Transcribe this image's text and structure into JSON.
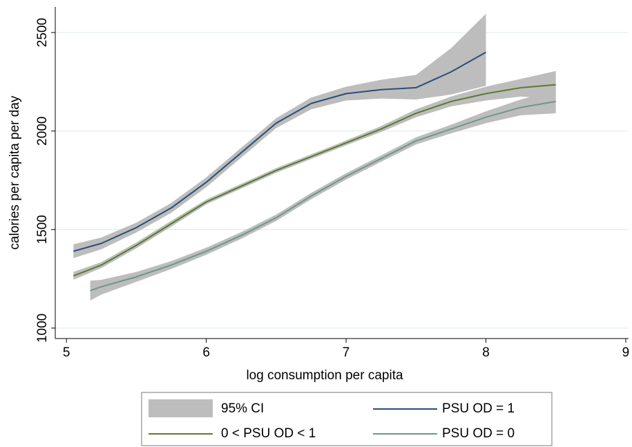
{
  "chart_data": {
    "type": "line",
    "x_label": "log consumption per capita",
    "y_label": "calories per capita per day",
    "xlim": [
      4.92,
      9.02
    ],
    "ylim": [
      947,
      2630
    ],
    "xticks": [
      5,
      6,
      7,
      8,
      9
    ],
    "yticks": [
      1000,
      1500,
      2000,
      2500
    ],
    "grid": true,
    "ci": {
      "name": "95% CI",
      "color": "#bdbdbd"
    },
    "series": [
      {
        "name": "PSU OD = 1",
        "color": "#2a4d78",
        "x": [
          5.05,
          5.25,
          5.5,
          5.75,
          6.0,
          6.25,
          6.5,
          6.75,
          7.0,
          7.25,
          7.5,
          7.75,
          8.0
        ],
        "values": [
          1390,
          1430,
          1510,
          1610,
          1740,
          1890,
          2040,
          2140,
          2190,
          2210,
          2220,
          2300,
          2400
        ],
        "upper": [
          1425,
          1460,
          1535,
          1635,
          1765,
          1915,
          2065,
          2170,
          2225,
          2260,
          2285,
          2420,
          2595
        ],
        "lower": [
          1355,
          1400,
          1485,
          1585,
          1715,
          1865,
          2015,
          2110,
          2155,
          2165,
          2160,
          2185,
          2230
        ]
      },
      {
        "name": "0 < PSU OD < 1",
        "color": "#5b7a2c",
        "x": [
          5.05,
          5.25,
          5.5,
          5.75,
          6.0,
          6.25,
          6.5,
          6.75,
          7.0,
          7.25,
          7.5,
          7.75,
          8.0,
          8.25,
          8.5
        ],
        "values": [
          1265,
          1320,
          1420,
          1530,
          1640,
          1720,
          1800,
          1870,
          1940,
          2010,
          2090,
          2150,
          2190,
          2220,
          2235
        ],
        "upper": [
          1285,
          1335,
          1435,
          1545,
          1652,
          1732,
          1812,
          1882,
          1952,
          2025,
          2110,
          2175,
          2225,
          2265,
          2305
        ],
        "lower": [
          1245,
          1305,
          1405,
          1515,
          1628,
          1708,
          1788,
          1858,
          1928,
          1995,
          2070,
          2125,
          2155,
          2175,
          2165
        ]
      },
      {
        "name": "PSU OD = 0",
        "color": "#6e9788",
        "x": [
          5.17,
          5.25,
          5.5,
          5.75,
          6.0,
          6.25,
          6.5,
          6.75,
          7.0,
          7.25,
          7.5,
          7.75,
          8.0,
          8.25,
          8.5
        ],
        "values": [
          1190,
          1210,
          1260,
          1320,
          1390,
          1470,
          1560,
          1670,
          1770,
          1860,
          1950,
          2010,
          2070,
          2120,
          2150
        ],
        "upper": [
          1240,
          1245,
          1285,
          1340,
          1408,
          1487,
          1576,
          1686,
          1786,
          1876,
          1968,
          2032,
          2100,
          2160,
          2210
        ],
        "lower": [
          1140,
          1170,
          1235,
          1300,
          1372,
          1453,
          1544,
          1654,
          1754,
          1844,
          1932,
          1988,
          2040,
          2080,
          2090
        ]
      }
    ]
  }
}
